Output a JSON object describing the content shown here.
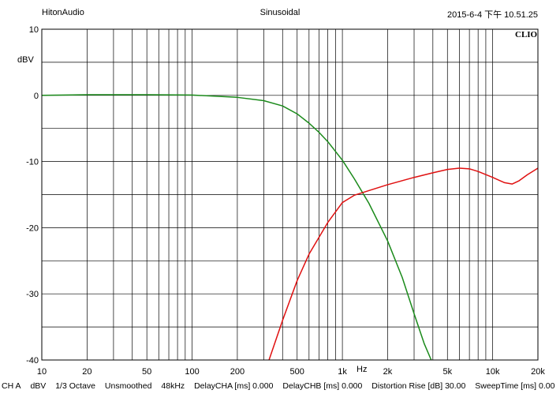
{
  "header": {
    "left": "HitonAudio",
    "center": "Sinusoidal",
    "right": "2015-6-4 下午 10.51.25"
  },
  "brand": "CLIO",
  "footer": {
    "channel": "CH A",
    "units": "dBV",
    "smoothing_band": "1/3 Octave",
    "smoothing": "Unsmoothed",
    "rate": "48kHz",
    "delay_a": "DelayCHA [ms] 0.000",
    "delay_b": "DelayCHB [ms] 0.000",
    "distortion_rise": "Distortion Rise [dB] 30.00",
    "sweep_time": "SweepTime [ms] 0.00"
  },
  "chart_data": {
    "type": "line",
    "title": "Sinusoidal",
    "xlabel": "Hz",
    "ylabel": "dBV",
    "x_scale": "log",
    "xlim": [
      10,
      20000
    ],
    "ylim": [
      -40,
      10
    ],
    "grid": true,
    "x_ticks": [
      {
        "value": 10,
        "label": "10"
      },
      {
        "value": 20,
        "label": "20"
      },
      {
        "value": 50,
        "label": "50"
      },
      {
        "value": 100,
        "label": "100"
      },
      {
        "value": 200,
        "label": "200"
      },
      {
        "value": 500,
        "label": "500"
      },
      {
        "value": 1000,
        "label": "1k"
      },
      {
        "value": 2000,
        "label": "2k"
      },
      {
        "value": 5000,
        "label": "5k"
      },
      {
        "value": 10000,
        "label": "10k"
      },
      {
        "value": 20000,
        "label": "20k"
      }
    ],
    "y_ticks": [
      {
        "value": 10,
        "label": "10"
      },
      {
        "value": 0,
        "label": "0"
      },
      {
        "value": -10,
        "label": "-10"
      },
      {
        "value": -20,
        "label": "-20"
      },
      {
        "value": -30,
        "label": "-30"
      },
      {
        "value": -40,
        "label": "-40"
      }
    ],
    "series": [
      {
        "color": "#1a8a1a",
        "points": [
          [
            10,
            0
          ],
          [
            20,
            0.1
          ],
          [
            50,
            0.1
          ],
          [
            100,
            0.05
          ],
          [
            200,
            -0.3
          ],
          [
            300,
            -0.8
          ],
          [
            400,
            -1.6
          ],
          [
            500,
            -2.8
          ],
          [
            600,
            -4.2
          ],
          [
            700,
            -5.6
          ],
          [
            800,
            -7.0
          ],
          [
            1000,
            -9.8
          ],
          [
            1200,
            -12.6
          ],
          [
            1500,
            -16.3
          ],
          [
            2000,
            -22.0
          ],
          [
            2500,
            -27.5
          ],
          [
            3000,
            -33.0
          ],
          [
            3500,
            -37.5
          ],
          [
            3900,
            -40
          ]
        ]
      },
      {
        "color": "#e01010",
        "points": [
          [
            325,
            -40
          ],
          [
            400,
            -34
          ],
          [
            500,
            -28
          ],
          [
            600,
            -24
          ],
          [
            800,
            -19.2
          ],
          [
            1000,
            -16.2
          ],
          [
            1200,
            -15.1
          ],
          [
            1500,
            -14.4
          ],
          [
            2000,
            -13.5
          ],
          [
            3000,
            -12.4
          ],
          [
            4000,
            -11.7
          ],
          [
            5000,
            -11.2
          ],
          [
            6000,
            -11.0
          ],
          [
            7000,
            -11.1
          ],
          [
            8000,
            -11.5
          ],
          [
            10000,
            -12.4
          ],
          [
            12000,
            -13.2
          ],
          [
            13500,
            -13.4
          ],
          [
            15000,
            -12.9
          ],
          [
            17000,
            -12.0
          ],
          [
            20000,
            -11.0
          ]
        ]
      }
    ]
  }
}
